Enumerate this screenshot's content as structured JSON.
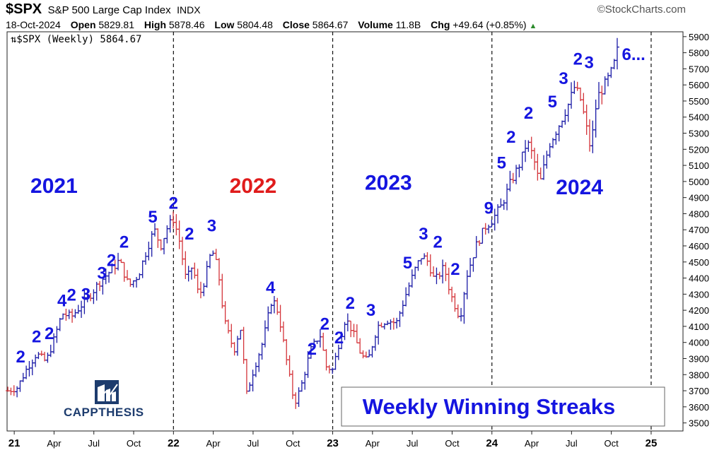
{
  "header": {
    "symbol": "$SPX",
    "name": "S&P 500 Large Cap Index",
    "exchange": "INDX",
    "brand": "©StockCharts.com",
    "date": "18-Oct-2024",
    "open_label": "Open",
    "open": "5829.81",
    "high_label": "High",
    "high": "5878.46",
    "low_label": "Low",
    "low": "5804.48",
    "close_label": "Close",
    "close": "5864.67",
    "volume_label": "Volume",
    "volume": "11.8B",
    "chg_label": "Chg",
    "chg": "+49.64 (+0.85%)"
  },
  "legend": "$SPX (Weekly) 5864.67",
  "logo_text": "CAPPTHESIS",
  "colors": {
    "up": "#1a1aa6",
    "down": "#d4343a",
    "annotation_blue": "#1515e0",
    "annotation_red": "#e01b1b"
  },
  "chart_data": {
    "type": "bar",
    "subtype": "ohlc-weekly",
    "ylim": [
      3450,
      5930
    ],
    "y_ticks": [
      3500,
      3600,
      3700,
      3800,
      3900,
      4000,
      4100,
      4200,
      4300,
      4400,
      4500,
      4600,
      4700,
      4800,
      4900,
      5000,
      5100,
      5200,
      5300,
      5400,
      5500,
      5600,
      5700,
      5800,
      5900
    ],
    "x_ticks": [
      {
        "label": "21",
        "t": 2021.0
      },
      {
        "label": "Apr",
        "t": 2021.25
      },
      {
        "label": "Jul",
        "t": 2021.5
      },
      {
        "label": "Oct",
        "t": 2021.75
      },
      {
        "label": "22",
        "t": 2022.0
      },
      {
        "label": "Apr",
        "t": 2022.25
      },
      {
        "label": "Jul",
        "t": 2022.5
      },
      {
        "label": "Oct",
        "t": 2022.75
      },
      {
        "label": "23",
        "t": 2023.0
      },
      {
        "label": "Apr",
        "t": 2023.25
      },
      {
        "label": "Jul",
        "t": 2023.5
      },
      {
        "label": "Oct",
        "t": 2023.75
      },
      {
        "label": "24",
        "t": 2024.0
      },
      {
        "label": "Apr",
        "t": 2024.25
      },
      {
        "label": "Jul",
        "t": 2024.5
      },
      {
        "label": "Oct",
        "t": 2024.75
      },
      {
        "label": "25",
        "t": 2025.0
      }
    ],
    "year_dividers": [
      2022.0,
      2023.0,
      2024.0,
      2025.0
    ],
    "path": [
      [
        2020.96,
        3700
      ],
      [
        2021.02,
        3720
      ],
      [
        2021.08,
        3840
      ],
      [
        2021.14,
        3930
      ],
      [
        2021.2,
        3880
      ],
      [
        2021.25,
        4020
      ],
      [
        2021.3,
        4180
      ],
      [
        2021.36,
        4160
      ],
      [
        2021.42,
        4230
      ],
      [
        2021.48,
        4300
      ],
      [
        2021.54,
        4380
      ],
      [
        2021.6,
        4440
      ],
      [
        2021.66,
        4510
      ],
      [
        2021.72,
        4350
      ],
      [
        2021.78,
        4420
      ],
      [
        2021.84,
        4600
      ],
      [
        2021.88,
        4700
      ],
      [
        2021.92,
        4600
      ],
      [
        2021.96,
        4710
      ],
      [
        2022.0,
        4770
      ],
      [
        2022.04,
        4620
      ],
      [
        2022.08,
        4380
      ],
      [
        2022.12,
        4480
      ],
      [
        2022.16,
        4280
      ],
      [
        2022.2,
        4400
      ],
      [
        2022.24,
        4580
      ],
      [
        2022.28,
        4450
      ],
      [
        2022.32,
        4130
      ],
      [
        2022.38,
        3950
      ],
      [
        2022.42,
        4100
      ],
      [
        2022.46,
        3680
      ],
      [
        2022.5,
        3820
      ],
      [
        2022.56,
        4000
      ],
      [
        2022.62,
        4280
      ],
      [
        2022.66,
        4180
      ],
      [
        2022.72,
        3830
      ],
      [
        2022.76,
        3620
      ],
      [
        2022.8,
        3720
      ],
      [
        2022.86,
        3950
      ],
      [
        2022.92,
        4050
      ],
      [
        2022.96,
        3850
      ],
      [
        2023.0,
        3830
      ],
      [
        2023.04,
        4000
      ],
      [
        2023.08,
        4150
      ],
      [
        2023.12,
        4080
      ],
      [
        2023.18,
        3920
      ],
      [
        2023.22,
        3880
      ],
      [
        2023.28,
        4100
      ],
      [
        2023.34,
        4140
      ],
      [
        2023.4,
        4120
      ],
      [
        2023.46,
        4300
      ],
      [
        2023.52,
        4460
      ],
      [
        2023.56,
        4540
      ],
      [
        2023.6,
        4500
      ],
      [
        2023.64,
        4380
      ],
      [
        2023.7,
        4470
      ],
      [
        2023.74,
        4300
      ],
      [
        2023.8,
        4150
      ],
      [
        2023.84,
        4410
      ],
      [
        2023.9,
        4600
      ],
      [
        2023.96,
        4720
      ],
      [
        2024.0,
        4760
      ],
      [
        2024.06,
        4850
      ],
      [
        2024.12,
        5000
      ],
      [
        2024.18,
        5120
      ],
      [
        2024.22,
        5250
      ],
      [
        2024.26,
        5150
      ],
      [
        2024.3,
        4980
      ],
      [
        2024.36,
        5230
      ],
      [
        2024.42,
        5350
      ],
      [
        2024.48,
        5480
      ],
      [
        2024.52,
        5590
      ],
      [
        2024.56,
        5500
      ],
      [
        2024.6,
        5300
      ],
      [
        2024.62,
        5200
      ],
      [
        2024.66,
        5520
      ],
      [
        2024.72,
        5620
      ],
      [
        2024.76,
        5700
      ],
      [
        2024.8,
        5865
      ]
    ],
    "annotations": [
      {
        "text": "2021",
        "t": 2021.25,
        "y": 4930,
        "style": "year",
        "color": "blue"
      },
      {
        "text": "2022",
        "t": 2022.5,
        "y": 4930,
        "style": "year",
        "color": "red"
      },
      {
        "text": "2023",
        "t": 2023.35,
        "y": 4950,
        "style": "year",
        "color": "blue"
      },
      {
        "text": "2024",
        "t": 2024.55,
        "y": 4920,
        "style": "year",
        "color": "blue"
      },
      {
        "text": "2",
        "t": 2021.04,
        "y": 3875,
        "color": "blue"
      },
      {
        "text": "2",
        "t": 2021.14,
        "y": 4000,
        "color": "blue"
      },
      {
        "text": "2",
        "t": 2021.22,
        "y": 4020,
        "color": "blue"
      },
      {
        "text": "4",
        "t": 2021.3,
        "y": 4225,
        "color": "blue"
      },
      {
        "text": "2",
        "t": 2021.36,
        "y": 4260,
        "color": "blue"
      },
      {
        "text": "3",
        "t": 2021.45,
        "y": 4265,
        "color": "blue"
      },
      {
        "text": "3",
        "t": 2021.55,
        "y": 4395,
        "color": "blue"
      },
      {
        "text": "2",
        "t": 2021.61,
        "y": 4475,
        "color": "blue"
      },
      {
        "text": "2",
        "t": 2021.69,
        "y": 4590,
        "color": "blue"
      },
      {
        "text": "5",
        "t": 2021.87,
        "y": 4745,
        "color": "blue"
      },
      {
        "text": "2",
        "t": 2022.0,
        "y": 4830,
        "color": "blue"
      },
      {
        "text": "2",
        "t": 2022.1,
        "y": 4640,
        "color": "blue"
      },
      {
        "text": "3",
        "t": 2022.24,
        "y": 4690,
        "color": "blue"
      },
      {
        "text": "4",
        "t": 2022.61,
        "y": 4305,
        "color": "blue"
      },
      {
        "text": "2",
        "t": 2022.87,
        "y": 3925,
        "color": "blue"
      },
      {
        "text": "2",
        "t": 2022.95,
        "y": 4080,
        "color": "blue"
      },
      {
        "text": "2",
        "t": 2023.04,
        "y": 3995,
        "color": "blue"
      },
      {
        "text": "2",
        "t": 2023.11,
        "y": 4210,
        "color": "blue"
      },
      {
        "text": "3",
        "t": 2023.24,
        "y": 4165,
        "color": "blue"
      },
      {
        "text": "5",
        "t": 2023.47,
        "y": 4460,
        "color": "blue"
      },
      {
        "text": "3",
        "t": 2023.57,
        "y": 4640,
        "color": "blue"
      },
      {
        "text": "2",
        "t": 2023.66,
        "y": 4590,
        "color": "blue"
      },
      {
        "text": "2",
        "t": 2023.77,
        "y": 4420,
        "color": "blue"
      },
      {
        "text": "9",
        "t": 2023.98,
        "y": 4800,
        "color": "blue"
      },
      {
        "text": "5",
        "t": 2024.06,
        "y": 5080,
        "color": "blue"
      },
      {
        "text": "2",
        "t": 2024.12,
        "y": 5240,
        "color": "blue"
      },
      {
        "text": "2",
        "t": 2024.23,
        "y": 5390,
        "color": "blue"
      },
      {
        "text": "5",
        "t": 2024.38,
        "y": 5460,
        "color": "blue"
      },
      {
        "text": "3",
        "t": 2024.45,
        "y": 5605,
        "color": "blue"
      },
      {
        "text": "2",
        "t": 2024.54,
        "y": 5725,
        "color": "blue"
      },
      {
        "text": "3",
        "t": 2024.61,
        "y": 5705,
        "color": "blue"
      },
      {
        "text": "6...",
        "t": 2024.89,
        "y": 5755,
        "color": "blue"
      }
    ],
    "title_box": "Weekly Winning Streaks"
  }
}
